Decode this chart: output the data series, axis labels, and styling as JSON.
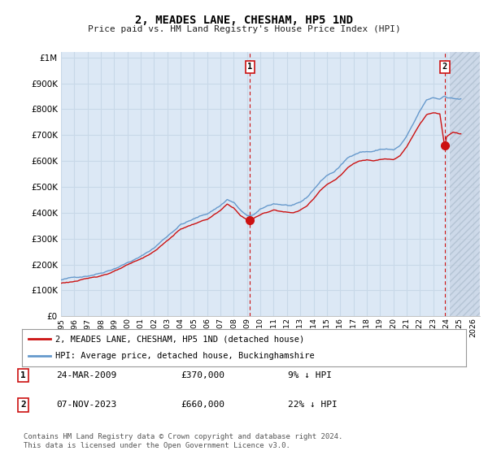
{
  "title": "2, MEADES LANE, CHESHAM, HP5 1ND",
  "subtitle": "Price paid vs. HM Land Registry's House Price Index (HPI)",
  "ytick_values": [
    0,
    100000,
    200000,
    300000,
    400000,
    500000,
    600000,
    700000,
    800000,
    900000,
    1000000
  ],
  "ylim": [
    0,
    1020000
  ],
  "xlim_start": 1995.0,
  "xlim_end": 2026.5,
  "hatch_start": 2024.25,
  "plot_bg_color": "#dce8f5",
  "grid_color": "#c8d8e8",
  "hatch_bg_color": "#c8d4e4",
  "line_color_hpi": "#6699cc",
  "line_color_price": "#cc1111",
  "dashed_line_color": "#cc1111",
  "annotation_box_color": "#cc1111",
  "purchase1": {
    "label": "1",
    "year_dec": 2009.22,
    "price": 370000,
    "date": "24-MAR-2009",
    "amount": "£370,000",
    "pct": "9% ↓ HPI"
  },
  "purchase2": {
    "label": "2",
    "year_dec": 2023.87,
    "price": 660000,
    "date": "07-NOV-2023",
    "amount": "£660,000",
    "pct": "22% ↓ HPI"
  },
  "legend_line1": "2, MEADES LANE, CHESHAM, HP5 1ND (detached house)",
  "legend_line2": "HPI: Average price, detached house, Buckinghamshire",
  "footer": "Contains HM Land Registry data © Crown copyright and database right 2024.\nThis data is licensed under the Open Government Licence v3.0."
}
